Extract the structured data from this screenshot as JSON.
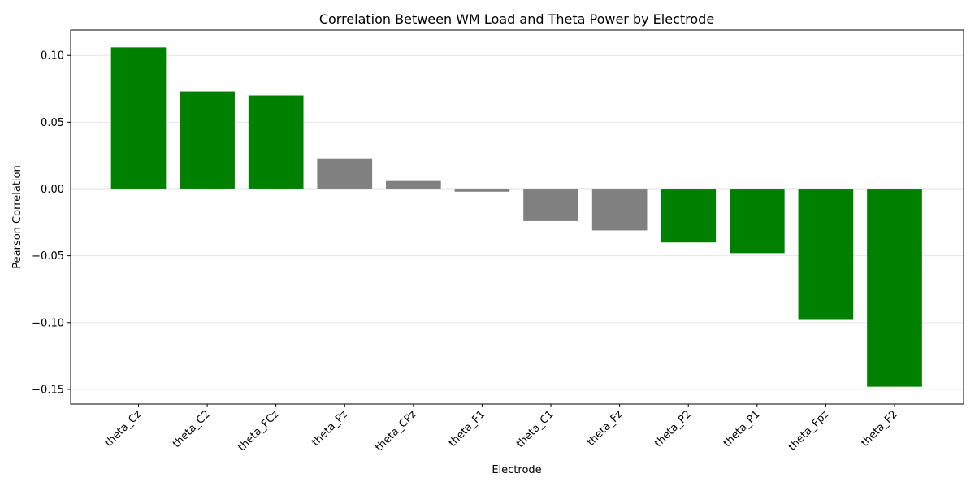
{
  "chart_data": {
    "type": "bar",
    "title": "Correlation Between WM Load and Theta Power by Electrode",
    "xlabel": "Electrode",
    "ylabel": "Pearson Correlation",
    "categories": [
      "theta_Cz",
      "theta_C2",
      "theta_FCz",
      "theta_Pz",
      "theta_CPz",
      "theta_F1",
      "theta_C1",
      "theta_Fz",
      "theta_P2",
      "theta_P1",
      "theta_Fpz",
      "theta_F2"
    ],
    "values": [
      0.106,
      0.073,
      0.07,
      0.023,
      0.006,
      -0.002,
      -0.024,
      -0.031,
      -0.04,
      -0.048,
      -0.098,
      -0.148
    ],
    "colors": [
      "#008000",
      "#008000",
      "#008000",
      "#808080",
      "#808080",
      "#808080",
      "#808080",
      "#808080",
      "#008000",
      "#008000",
      "#008000",
      "#008000"
    ],
    "ylim": [
      -0.161,
      0.119
    ],
    "yticks": [
      -0.15,
      -0.1,
      -0.05,
      0.0,
      0.05,
      0.1
    ],
    "ytick_labels": [
      "−0.15",
      "−0.10",
      "−0.05",
      "0.00",
      "0.05",
      "0.10"
    ],
    "grid": "y",
    "zero_line": true
  }
}
